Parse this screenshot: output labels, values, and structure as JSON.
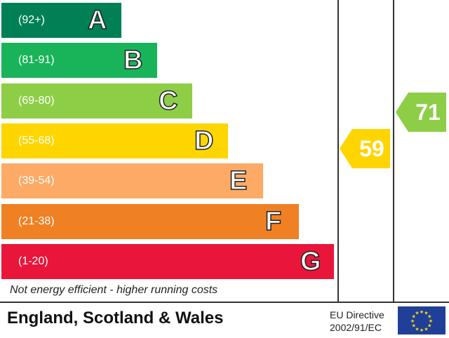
{
  "chart_data": {
    "type": "bar",
    "categories": [
      "(92+)",
      "(81-91)",
      "(69-80)",
      "(55-68)",
      "(39-54)",
      "(21-38)",
      "(1-20)"
    ],
    "bands": [
      {
        "range": "(92+)",
        "letter": "A",
        "color": "#008054"
      },
      {
        "range": "(81-91)",
        "letter": "B",
        "color": "#19b459"
      },
      {
        "range": "(69-80)",
        "letter": "C",
        "color": "#8dce46"
      },
      {
        "range": "(55-68)",
        "letter": "D",
        "color": "#ffd500"
      },
      {
        "range": "(39-54)",
        "letter": "E",
        "color": "#fcaa65"
      },
      {
        "range": "(21-38)",
        "letter": "F",
        "color": "#ef8023"
      },
      {
        "range": "(1-20)",
        "letter": "G",
        "color": "#e9153b"
      }
    ],
    "ratings": [
      {
        "value": 59,
        "color": "#ffd500"
      },
      {
        "value": 71,
        "color": "#8dce46"
      }
    ],
    "footnote": "Not energy efficient - higher running costs"
  },
  "footer": {
    "region": "England, Scotland & Wales",
    "directive_line1": "EU Directive",
    "directive_line2": "2002/91/EC"
  }
}
